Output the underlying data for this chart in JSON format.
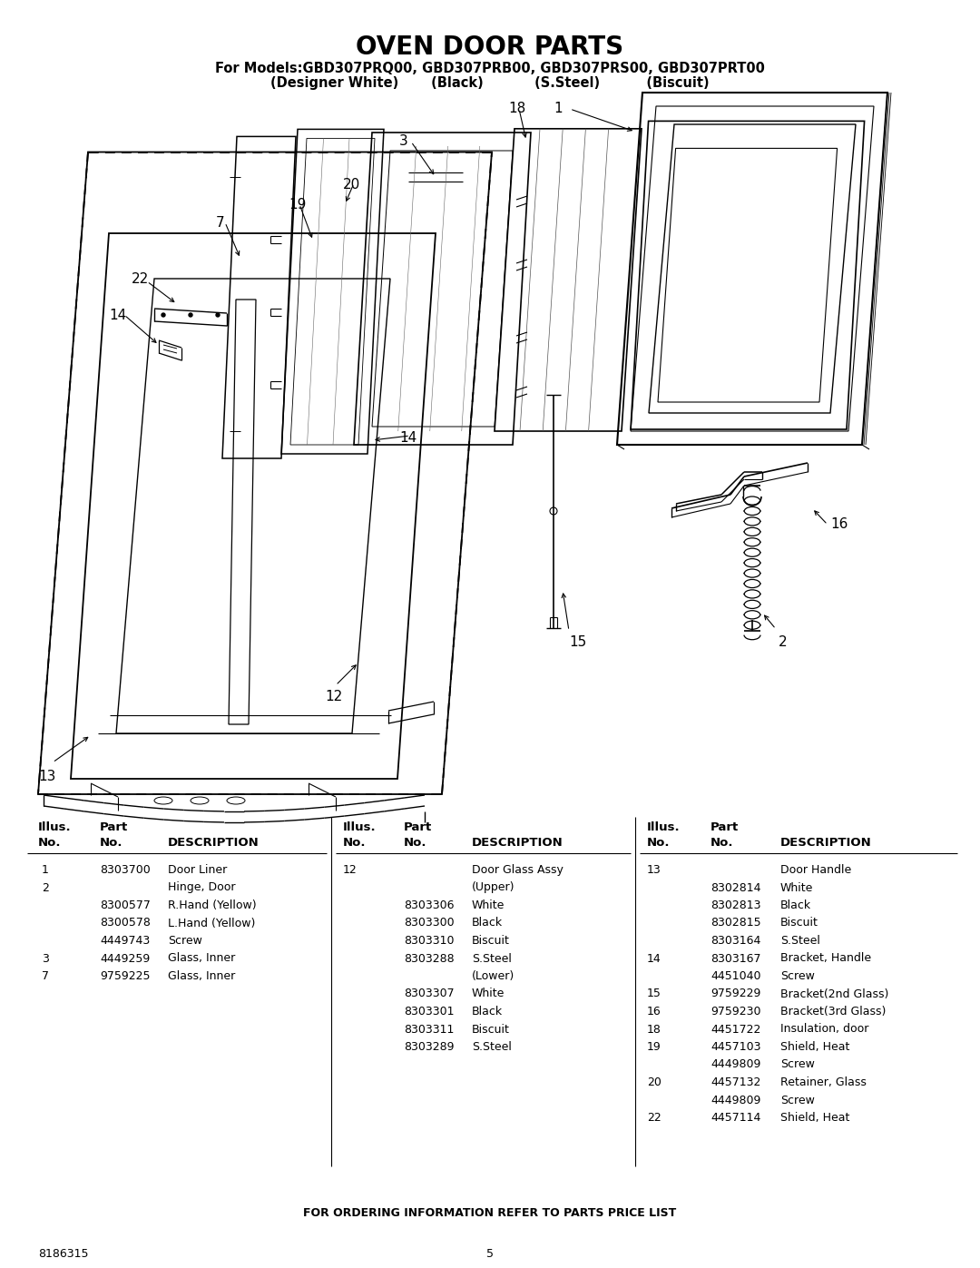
{
  "title": "OVEN DOOR PARTS",
  "subtitle_line1": "For Models:GBD307PRQ00, GBD307PRB00, GBD307PRS00, GBD307PRT00",
  "subtitle_line2": "(Designer White)       (Black)           (S.Steel)          (Biscuit)",
  "footer_text": "FOR ORDERING INFORMATION REFER TO PARTS PRICE LIST",
  "doc_number": "8186315",
  "page_number": "5",
  "bg_color": "#ffffff",
  "text_color": "#000000",
  "col1_rows": [
    [
      "1",
      "8303700",
      "Door Liner"
    ],
    [
      "2",
      "",
      "Hinge, Door"
    ],
    [
      "",
      "8300577",
      "R.Hand (Yellow)"
    ],
    [
      "",
      "8300578",
      "L.Hand (Yellow)"
    ],
    [
      "",
      "4449743",
      "Screw"
    ],
    [
      "3",
      "4449259",
      "Glass, Inner"
    ],
    [
      "7",
      "9759225",
      "Glass, Inner"
    ]
  ],
  "col2_rows": [
    [
      "12",
      "",
      "Door Glass Assy"
    ],
    [
      "",
      "",
      "(Upper)"
    ],
    [
      "",
      "8303306",
      "White"
    ],
    [
      "",
      "8303300",
      "Black"
    ],
    [
      "",
      "8303310",
      "Biscuit"
    ],
    [
      "",
      "8303288",
      "S.Steel"
    ],
    [
      "",
      "",
      "(Lower)"
    ],
    [
      "",
      "8303307",
      "White"
    ],
    [
      "",
      "8303301",
      "Black"
    ],
    [
      "",
      "8303311",
      "Biscuit"
    ],
    [
      "",
      "8303289",
      "S.Steel"
    ]
  ],
  "col3_rows": [
    [
      "13",
      "",
      "Door Handle"
    ],
    [
      "",
      "8302814",
      "White"
    ],
    [
      "",
      "8302813",
      "Black"
    ],
    [
      "",
      "8302815",
      "Biscuit"
    ],
    [
      "",
      "8303164",
      "S.Steel"
    ],
    [
      "14",
      "8303167",
      "Bracket, Handle"
    ],
    [
      "",
      "4451040",
      "Screw"
    ],
    [
      "15",
      "9759229",
      "Bracket(2nd Glass)"
    ],
    [
      "16",
      "9759230",
      "Bracket(3rd Glass)"
    ],
    [
      "18",
      "4451722",
      "Insulation, door"
    ],
    [
      "19",
      "4457103",
      "Shield, Heat"
    ],
    [
      "",
      "4449809",
      "Screw"
    ],
    [
      "20",
      "4457132",
      "Retainer, Glass"
    ],
    [
      "",
      "4449809",
      "Screw"
    ],
    [
      "22",
      "4457114",
      "Shield, Heat"
    ]
  ]
}
